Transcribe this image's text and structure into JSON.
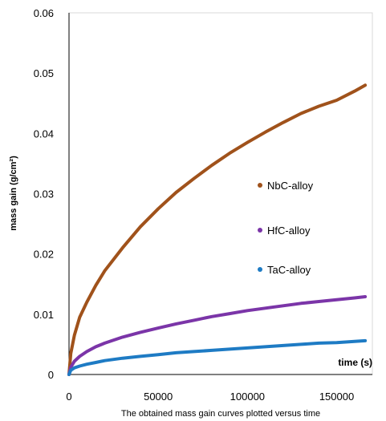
{
  "chart_data": {
    "type": "line",
    "title": "",
    "xlabel": "time (s)",
    "ylabel": "mass gain (g/cm²)",
    "xlim": [
      0,
      170000
    ],
    "ylim": [
      0,
      0.06
    ],
    "x_ticks": [
      0,
      50000,
      100000,
      150000
    ],
    "y_ticks": [
      0,
      0.01,
      0.02,
      0.03,
      0.04,
      0.05,
      0.06
    ],
    "x_tick_labels": [
      "0",
      "50000",
      "100000",
      "150000"
    ],
    "y_tick_labels": [
      "0",
      "0.01",
      "0.02",
      "0.03",
      "0.04",
      "0.05",
      "0.06"
    ],
    "grid": false,
    "legend_position": "center-right",
    "series": [
      {
        "name": "NbC-alloy",
        "color": "#a0521b",
        "x": [
          0,
          1000,
          3000,
          6000,
          10000,
          15000,
          20000,
          30000,
          40000,
          50000,
          60000,
          70000,
          80000,
          90000,
          100000,
          110000,
          120000,
          130000,
          140000,
          150000,
          160000,
          166000
        ],
        "y": [
          0,
          0.0035,
          0.0065,
          0.0095,
          0.012,
          0.0148,
          0.0172,
          0.021,
          0.0245,
          0.0275,
          0.0302,
          0.0325,
          0.0347,
          0.0367,
          0.0385,
          0.0402,
          0.0418,
          0.0433,
          0.0445,
          0.0455,
          0.047,
          0.048
        ]
      },
      {
        "name": "HfC-alloy",
        "color": "#7b35a8",
        "x": [
          0,
          1000,
          3000,
          6000,
          10000,
          15000,
          20000,
          30000,
          40000,
          50000,
          60000,
          70000,
          80000,
          90000,
          100000,
          110000,
          120000,
          130000,
          140000,
          150000,
          160000,
          166000
        ],
        "y": [
          0,
          0.0012,
          0.0022,
          0.003,
          0.0038,
          0.0046,
          0.0052,
          0.0062,
          0.007,
          0.0077,
          0.0084,
          0.009,
          0.0096,
          0.0101,
          0.0106,
          0.011,
          0.0114,
          0.0118,
          0.0121,
          0.0124,
          0.0127,
          0.0129
        ]
      },
      {
        "name": "TaC-alloy",
        "color": "#1e7bc4",
        "x": [
          0,
          1000,
          3000,
          6000,
          10000,
          15000,
          20000,
          30000,
          40000,
          50000,
          60000,
          70000,
          80000,
          90000,
          100000,
          110000,
          120000,
          130000,
          140000,
          150000,
          160000,
          166000
        ],
        "y": [
          0,
          0.0007,
          0.0011,
          0.0014,
          0.0017,
          0.002,
          0.0023,
          0.0027,
          0.003,
          0.0033,
          0.0036,
          0.0038,
          0.004,
          0.0042,
          0.0044,
          0.0046,
          0.0048,
          0.005,
          0.0052,
          0.0053,
          0.0055,
          0.0056
        ]
      }
    ]
  },
  "caption": "The obtained mass gain curves plotted versus time"
}
